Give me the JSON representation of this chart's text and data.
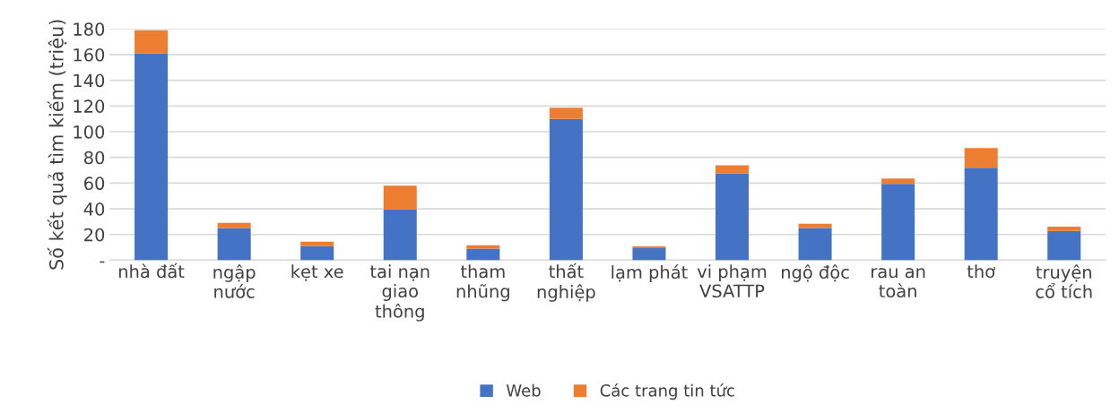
{
  "chart_data": {
    "type": "bar",
    "stacked": true,
    "ylabel": "Số kết quả tìm kiếm (triệu)",
    "categories": [
      "nhà đất",
      "ngập\nnước",
      "kẹt xe",
      "tai nạn\ngiao\nthông",
      "tham\nnhũng",
      "thất\nnghiệp",
      "lạm phát",
      "vi phạm\nVSATTP",
      "ngộ độc",
      "rau an\ntoàn",
      "thơ",
      "truyện\ncổ tích"
    ],
    "series": [
      {
        "name": "Web",
        "color": "#4472c4",
        "values": [
          161,
          25,
          11,
          39.5,
          9,
          110,
          9.4,
          67.5,
          25,
          59.4,
          72,
          22.8
        ]
      },
      {
        "name": "Các trang tin tức",
        "color": "#ed7d31",
        "values": [
          18,
          4,
          3.5,
          18.5,
          2.7,
          8.6,
          1.4,
          6.4,
          3.3,
          4.2,
          15.2,
          3.3
        ]
      }
    ],
    "ylim": [
      0,
      180
    ],
    "yticks": [
      {
        "value": 0,
        "label": "-"
      },
      20,
      40,
      60,
      80,
      100,
      120,
      140,
      160,
      180
    ],
    "grid": "y",
    "legend": "bottom"
  }
}
